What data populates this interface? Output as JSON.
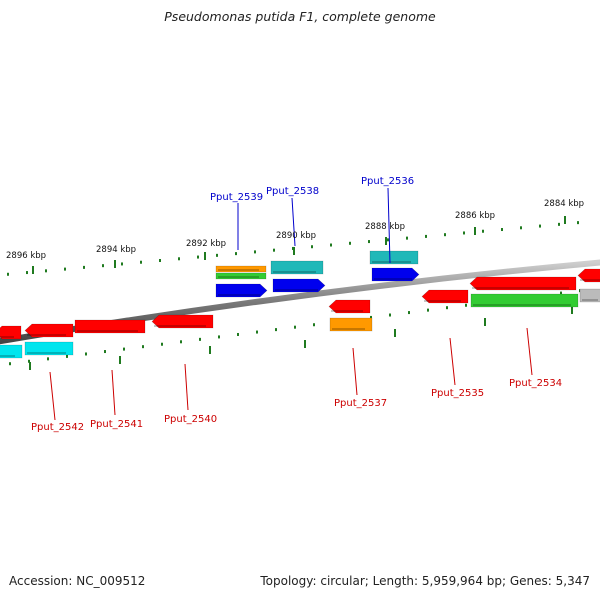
{
  "title": "Pseudomonas putida F1, complete genome",
  "footer": {
    "accession": "Accession: NC_009512",
    "summary": "Topology: circular; Length: 5,959,964 bp; Genes: 5,347"
  },
  "colors": {
    "backbone": "#8c8c8c",
    "tick": "#1f7a1f",
    "label_forward": "#0000cc",
    "label_reverse": "#cc0000",
    "red": "#ff0000",
    "cyan": "#00e5ee",
    "teal": "#20b8b8",
    "blue": "#0000ee",
    "green": "#33cc33",
    "orange": "#ff9900",
    "gray": "#bbbbbb"
  },
  "ticks": [
    {
      "label": "2896 kbp"
    },
    {
      "label": "2894 kbp"
    },
    {
      "label": "2892 kbp"
    },
    {
      "label": "2890 kbp"
    },
    {
      "label": "2888 kbp"
    },
    {
      "label": "2886 kbp"
    },
    {
      "label": "2884 kbp"
    }
  ],
  "gene_labels": [
    {
      "text": "Pput_2539",
      "strand": "forward"
    },
    {
      "text": "Pput_2538",
      "strand": "forward"
    },
    {
      "text": "Pput_2536",
      "strand": "forward"
    },
    {
      "text": "Pput_2542",
      "strand": "reverse"
    },
    {
      "text": "Pput_2541",
      "strand": "reverse"
    },
    {
      "text": "Pput_2540",
      "strand": "reverse"
    },
    {
      "text": "Pput_2537",
      "strand": "reverse"
    },
    {
      "text": "Pput_2535",
      "strand": "reverse"
    },
    {
      "text": "Pput_2534",
      "strand": "reverse"
    }
  ]
}
